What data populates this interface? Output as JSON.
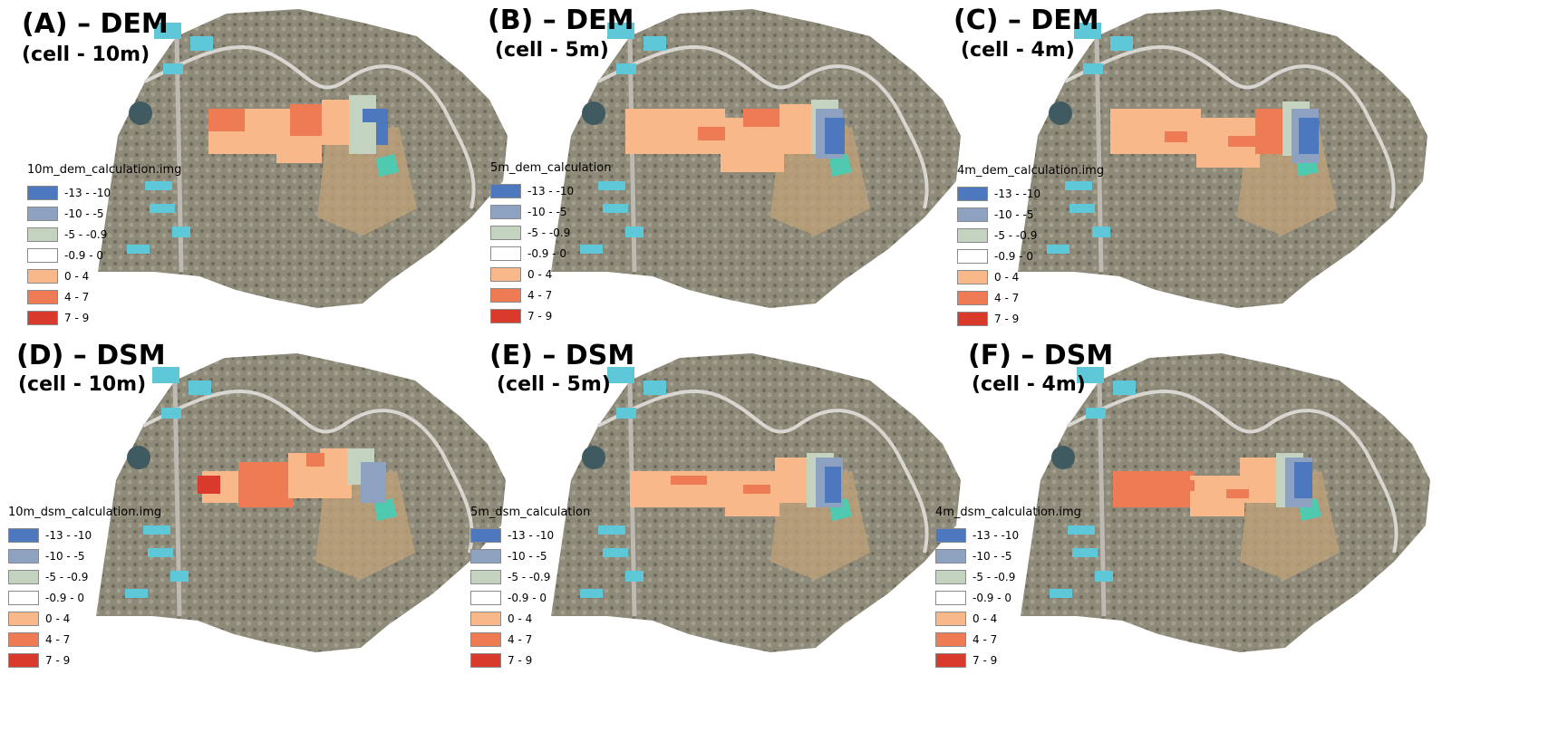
{
  "colors": {
    "class_1": "#4e78bd",
    "class_2": "#8da2c0",
    "class_3": "#c4d2c0",
    "class_4": "#ffffff",
    "class_5": "#f8b889",
    "class_6": "#ee7b54",
    "class_7": "#d93a2b",
    "terrain": "#8e8a7a",
    "building_cyan": "#5ec8d8",
    "road": "#d8d6d0"
  },
  "legend_labels": [
    "-13 - -10",
    "-10 - -5",
    "-5 - -0.9",
    "-0.9 - 0",
    "0 - 4",
    "4 - 7",
    "7 - 9"
  ],
  "panels": [
    {
      "title": "(A) – DEM",
      "subtitle": "(cell - 10m)",
      "legend_title": "10m_dem_calculation.img"
    },
    {
      "title": "(B) – DEM",
      "subtitle": "(cell - 5m)",
      "legend_title": "5m_dem_calculation"
    },
    {
      "title": "(C) – DEM",
      "subtitle": "(cell - 4m)",
      "legend_title": "4m_dem_calculation.img"
    },
    {
      "title": "(D) – DSM",
      "subtitle": "(cell - 10m)",
      "legend_title": "10m_dsm_calculation.img"
    },
    {
      "title": "(E) – DSM",
      "subtitle": "(cell - 5m)",
      "legend_title": "5m_dsm_calculation"
    },
    {
      "title": "(F) – DSM",
      "subtitle": "(cell - 4m)",
      "legend_title": "4m_dsm_calculation.img"
    }
  ]
}
